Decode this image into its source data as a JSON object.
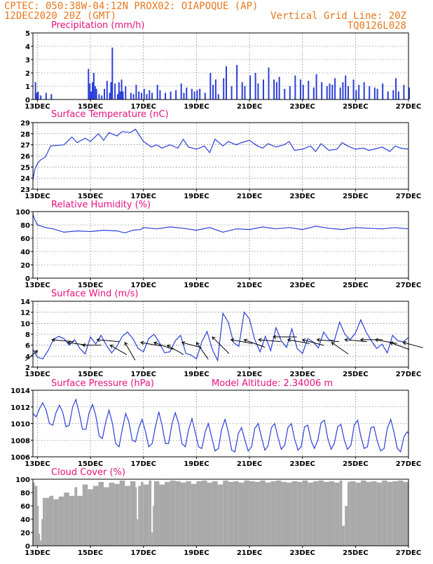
{
  "header": {
    "line1_left": "CPTEC:   050:38W-04:12N   PROX02: OIAPOQUE (AP)",
    "line2_left": "12DEC2020 20Z (GMT)",
    "line2_right": "Vertical Grid Line: 20Z",
    "line3_right": "TQ0126L028"
  },
  "colors": {
    "header": "#e8771e",
    "title": "#e8117f",
    "series": "#2a3fd8",
    "cloud": "#a9a9a9",
    "arrow": "#000000"
  },
  "chart_data": [
    {
      "id": "precip",
      "type": "bar",
      "title": "Precipitation (mm/h)",
      "xticks": [
        "13DEC",
        "15DEC",
        "17DEC",
        "19DEC",
        "21DEC",
        "23DEC",
        "25DEC",
        "27DEC"
      ],
      "xlim_days": [
        12.83,
        27.0
      ],
      "ylim": [
        0,
        5
      ],
      "yticks": [
        0,
        1,
        2,
        3,
        4,
        5
      ],
      "grid": true,
      "color": "#2a3fd8",
      "x_days": [
        12.9,
        12.95,
        13.0,
        13.1,
        13.3,
        13.5,
        14.9,
        14.95,
        15.0,
        15.05,
        15.1,
        15.15,
        15.2,
        15.3,
        15.4,
        15.5,
        15.6,
        15.7,
        15.75,
        15.8,
        15.9,
        16.0,
        16.05,
        16.1,
        16.15,
        16.2,
        16.3,
        16.5,
        16.6,
        16.7,
        16.8,
        16.9,
        17.0,
        17.1,
        17.2,
        17.3,
        17.5,
        17.6,
        17.8,
        18.0,
        18.2,
        18.4,
        18.5,
        18.6,
        18.8,
        18.9,
        19.0,
        19.1,
        19.3,
        19.5,
        19.6,
        19.7,
        19.8,
        20.0,
        20.1,
        20.3,
        20.5,
        20.7,
        20.8,
        21.0,
        21.2,
        21.3,
        21.5,
        21.7,
        21.9,
        22.0,
        22.1,
        22.3,
        22.5,
        22.7,
        22.9,
        23.0,
        23.2,
        23.4,
        23.5,
        23.7,
        23.9,
        24.0,
        24.1,
        24.2,
        24.4,
        24.5,
        24.6,
        24.7,
        24.9,
        25.0,
        25.1,
        25.3,
        25.5,
        25.7,
        25.8,
        26.0,
        26.2,
        26.4,
        26.5,
        26.6,
        26.8,
        27.0
      ],
      "values": [
        1.3,
        0.5,
        0.6,
        0.3,
        0.5,
        0.4,
        2.3,
        1.2,
        0.6,
        1.3,
        2.0,
        1.0,
        0.8,
        0.4,
        0.3,
        0.8,
        1.4,
        0.5,
        1.3,
        3.9,
        1.2,
        0.4,
        1.3,
        0.6,
        1.5,
        0.6,
        1.0,
        0.5,
        0.4,
        1.1,
        0.6,
        0.5,
        0.8,
        0.4,
        0.7,
        0.5,
        1.1,
        0.7,
        0.5,
        0.6,
        0.7,
        1.2,
        0.5,
        0.9,
        0.8,
        0.6,
        0.7,
        0.8,
        0.5,
        2.0,
        1.1,
        1.5,
        0.4,
        1.6,
        2.5,
        1.0,
        2.6,
        1.3,
        1.0,
        1.8,
        2.0,
        1.2,
        1.5,
        2.4,
        1.5,
        1.3,
        1.7,
        0.8,
        1.0,
        1.8,
        1.5,
        1.1,
        1.4,
        0.9,
        1.9,
        1.3,
        1.0,
        1.2,
        1.1,
        1.6,
        0.9,
        1.3,
        1.8,
        1.0,
        1.5,
        0.7,
        1.1,
        1.3,
        1.0,
        0.9,
        0.8,
        1.2,
        0.6,
        0.7,
        1.6,
        0.6,
        1.1,
        0.9
      ]
    },
    {
      "id": "temp",
      "type": "line",
      "title": "Surface Temperature (nC)",
      "xticks": [
        "13DEC",
        "15DEC",
        "17DEC",
        "19DEC",
        "21DEC",
        "23DEC",
        "25DEC",
        "27DEC"
      ],
      "xlim_days": [
        12.83,
        27.0
      ],
      "ylim": [
        23,
        29
      ],
      "yticks": [
        23,
        24,
        25,
        26,
        27,
        28,
        29
      ],
      "grid": true,
      "color": "#2a3fd8",
      "x_days": [
        12.83,
        12.9,
        13.0,
        13.1,
        13.3,
        13.5,
        14.0,
        14.3,
        14.5,
        14.8,
        15.0,
        15.3,
        15.5,
        15.7,
        16.0,
        16.2,
        16.5,
        16.7,
        17.0,
        17.3,
        17.5,
        17.7,
        18.0,
        18.3,
        18.5,
        18.7,
        19.0,
        19.3,
        19.5,
        19.7,
        20.0,
        20.2,
        20.5,
        20.7,
        21.0,
        21.3,
        21.5,
        21.7,
        22.0,
        22.3,
        22.5,
        22.7,
        23.0,
        23.3,
        23.5,
        23.7,
        24.0,
        24.3,
        24.5,
        24.7,
        25.0,
        25.3,
        25.5,
        25.7,
        26.0,
        26.3,
        26.5,
        26.7,
        27.0
      ],
      "values": [
        23.8,
        24.8,
        25.3,
        25.6,
        25.9,
        26.9,
        27.0,
        27.7,
        27.2,
        27.6,
        27.3,
        28.0,
        27.4,
        28.1,
        27.8,
        28.2,
        28.1,
        28.4,
        27.3,
        26.8,
        27.0,
        26.7,
        27.0,
        26.7,
        27.5,
        26.8,
        26.6,
        26.9,
        26.3,
        27.5,
        26.9,
        27.3,
        27.0,
        27.2,
        27.4,
        26.9,
        26.7,
        27.1,
        26.8,
        27.0,
        27.3,
        26.5,
        26.6,
        26.9,
        26.4,
        27.1,
        26.5,
        26.6,
        27.2,
        26.9,
        26.6,
        26.7,
        26.5,
        26.6,
        26.8,
        26.4,
        26.9,
        26.7,
        26.6
      ]
    },
    {
      "id": "rh",
      "type": "line",
      "title": "Relative Humidity (%)",
      "xticks": [
        "13DEC",
        "15DEC",
        "17DEC",
        "19DEC",
        "21DEC",
        "23DEC",
        "25DEC",
        "27DEC"
      ],
      "xlim_days": [
        12.83,
        27.0
      ],
      "ylim": [
        0,
        100
      ],
      "yticks": [
        0,
        20,
        40,
        60,
        80,
        100
      ],
      "grid": true,
      "color": "#2a3fd8",
      "x_days": [
        12.83,
        12.9,
        13.0,
        13.3,
        13.6,
        14.0,
        14.5,
        15.0,
        15.5,
        16.0,
        16.3,
        16.6,
        16.9,
        17.0,
        17.5,
        18.0,
        18.5,
        19.0,
        19.5,
        20.0,
        20.5,
        21.0,
        21.5,
        22.0,
        22.5,
        23.0,
        23.5,
        24.0,
        24.5,
        25.0,
        25.5,
        26.0,
        26.5,
        27.0
      ],
      "values": [
        96,
        88,
        80,
        76,
        74,
        69,
        71,
        70,
        72,
        71,
        68,
        72,
        73,
        76,
        74,
        77,
        75,
        72,
        76,
        69,
        74,
        73,
        77,
        74,
        76,
        73,
        78,
        75,
        73,
        76,
        75,
        74,
        76,
        74
      ]
    },
    {
      "id": "wind",
      "type": "line",
      "title": "Surface Wind (m/s)",
      "xticks": [
        "13DEC",
        "15DEC",
        "17DEC",
        "19DEC",
        "21DEC",
        "23DEC",
        "25DEC",
        "27DEC"
      ],
      "xlim_days": [
        12.83,
        27.0
      ],
      "ylim": [
        2,
        14
      ],
      "yticks": [
        2,
        4,
        6,
        8,
        10,
        12,
        14
      ],
      "grid": true,
      "color": "#2a3fd8",
      "x_days": [
        12.83,
        13.0,
        13.2,
        13.4,
        13.6,
        13.8,
        14.0,
        14.2,
        14.4,
        14.6,
        14.8,
        15.0,
        15.2,
        15.4,
        15.6,
        15.8,
        16.0,
        16.2,
        16.4,
        16.6,
        16.8,
        17.0,
        17.2,
        17.4,
        17.6,
        17.8,
        18.0,
        18.2,
        18.4,
        18.6,
        18.8,
        19.0,
        19.2,
        19.4,
        19.6,
        19.8,
        20.0,
        20.2,
        20.4,
        20.6,
        20.8,
        21.0,
        21.2,
        21.4,
        21.6,
        21.8,
        22.0,
        22.2,
        22.4,
        22.6,
        22.8,
        23.0,
        23.2,
        23.4,
        23.6,
        23.8,
        24.0,
        24.2,
        24.4,
        24.6,
        24.8,
        25.0,
        25.2,
        25.4,
        25.6,
        25.8,
        26.0,
        26.2,
        26.4,
        26.6,
        26.8,
        27.0
      ],
      "values": [
        5.2,
        3.8,
        3.5,
        5.0,
        7.0,
        7.6,
        7.2,
        6.0,
        7.0,
        5.4,
        4.4,
        7.5,
        6.2,
        7.8,
        6.0,
        4.6,
        5.8,
        7.6,
        8.4,
        7.2,
        5.4,
        4.8,
        7.2,
        8.0,
        6.5,
        4.6,
        4.8,
        6.8,
        7.8,
        4.5,
        4.2,
        3.5,
        6.6,
        8.5,
        5.2,
        3.2,
        11.8,
        10.2,
        6.5,
        5.8,
        12.0,
        10.8,
        7.0,
        4.8,
        7.6,
        5.0,
        9.2,
        6.8,
        5.6,
        9.0,
        5.4,
        4.5,
        7.2,
        6.6,
        5.5,
        8.4,
        7.0,
        6.8,
        10.2,
        8.0,
        7.0,
        8.2,
        10.6,
        8.4,
        6.8,
        5.4,
        6.2,
        4.6,
        7.8,
        6.8,
        6.6,
        7.4
      ],
      "wind_arrows": [
        {
          "x_day": 13.0,
          "speed": 5.0,
          "dir_deg": 140
        },
        {
          "x_day": 13.55,
          "speed": 7.0,
          "dir_deg": 5
        },
        {
          "x_day": 14.15,
          "speed": 6.5,
          "dir_deg": 8
        },
        {
          "x_day": 14.7,
          "speed": 6.0,
          "dir_deg": 0
        },
        {
          "x_day": 15.25,
          "speed": 7.0,
          "dir_deg": 5
        },
        {
          "x_day": 15.75,
          "speed": 6.0,
          "dir_deg": 30
        },
        {
          "x_day": 16.3,
          "speed": 6.5,
          "dir_deg": 60
        },
        {
          "x_day": 16.9,
          "speed": 6.5,
          "dir_deg": 10
        },
        {
          "x_day": 17.4,
          "speed": 6.5,
          "dir_deg": 20
        },
        {
          "x_day": 17.9,
          "speed": 6.0,
          "dir_deg": 30
        },
        {
          "x_day": 18.45,
          "speed": 6.5,
          "dir_deg": 15
        },
        {
          "x_day": 19.0,
          "speed": 6.5,
          "dir_deg": 55
        },
        {
          "x_day": 19.6,
          "speed": 7.5,
          "dir_deg": 45
        },
        {
          "x_day": 20.3,
          "speed": 7.0,
          "dir_deg": 10
        },
        {
          "x_day": 20.8,
          "speed": 7.0,
          "dir_deg": 20
        },
        {
          "x_day": 21.35,
          "speed": 7.0,
          "dir_deg": 5
        },
        {
          "x_day": 21.9,
          "speed": 7.5,
          "dir_deg": 0
        },
        {
          "x_day": 22.45,
          "speed": 7.0,
          "dir_deg": 10
        },
        {
          "x_day": 23.0,
          "speed": 7.0,
          "dir_deg": 15
        },
        {
          "x_day": 23.55,
          "speed": 7.0,
          "dir_deg": 5
        },
        {
          "x_day": 24.1,
          "speed": 6.5,
          "dir_deg": 35
        },
        {
          "x_day": 24.6,
          "speed": 7.0,
          "dir_deg": 5
        },
        {
          "x_day": 25.2,
          "speed": 7.0,
          "dir_deg": 0
        },
        {
          "x_day": 25.75,
          "speed": 7.0,
          "dir_deg": 10
        },
        {
          "x_day": 26.3,
          "speed": 6.5,
          "dir_deg": 20
        },
        {
          "x_day": 26.8,
          "speed": 6.5,
          "dir_deg": 15
        }
      ]
    },
    {
      "id": "pressure",
      "type": "line",
      "title": "Surface Pressure (hPa)",
      "annotation": "Model Altitude: 2.34006 m",
      "xticks": [
        "13DEC",
        "15DEC",
        "17DEC",
        "19DEC",
        "21DEC",
        "23DEC",
        "25DEC",
        "27DEC"
      ],
      "xlim_days": [
        12.83,
        27.0
      ],
      "ylim": [
        1006,
        1014
      ],
      "yticks": [
        1006,
        1008,
        1010,
        1012,
        1014
      ],
      "grid": true,
      "color": "#2a3fd8",
      "x_days": [
        12.83,
        12.95,
        13.08,
        13.2,
        13.33,
        13.45,
        13.58,
        13.7,
        13.83,
        13.95,
        14.08,
        14.2,
        14.33,
        14.45,
        14.58,
        14.7,
        14.83,
        14.95,
        15.08,
        15.2,
        15.33,
        15.45,
        15.58,
        15.7,
        15.83,
        15.95,
        16.08,
        16.2,
        16.33,
        16.45,
        16.58,
        16.7,
        16.83,
        16.95,
        17.08,
        17.2,
        17.33,
        17.45,
        17.58,
        17.7,
        17.83,
        17.95,
        18.08,
        18.2,
        18.33,
        18.45,
        18.58,
        18.7,
        18.83,
        18.95,
        19.08,
        19.2,
        19.33,
        19.45,
        19.58,
        19.7,
        19.83,
        19.95,
        20.08,
        20.2,
        20.33,
        20.45,
        20.58,
        20.7,
        20.83,
        20.95,
        21.08,
        21.2,
        21.33,
        21.45,
        21.58,
        21.7,
        21.83,
        21.95,
        22.08,
        22.2,
        22.33,
        22.45,
        22.58,
        22.7,
        22.83,
        22.95,
        23.08,
        23.2,
        23.33,
        23.45,
        23.58,
        23.7,
        23.83,
        23.95,
        24.08,
        24.2,
        24.33,
        24.45,
        24.58,
        24.7,
        24.83,
        24.95,
        25.08,
        25.2,
        25.33,
        25.45,
        25.58,
        25.7,
        25.83,
        25.95,
        26.08,
        26.2,
        26.33,
        26.45,
        26.58,
        26.7,
        26.83,
        26.95,
        27.0
      ],
      "values": [
        1011.2,
        1010.8,
        1011.8,
        1012.5,
        1011.6,
        1010.0,
        1009.8,
        1011.3,
        1012.2,
        1011.4,
        1009.6,
        1009.8,
        1012.0,
        1012.9,
        1011.2,
        1009.3,
        1009.3,
        1011.3,
        1012.3,
        1011.0,
        1008.5,
        1008.2,
        1010.2,
        1011.6,
        1010.0,
        1007.6,
        1007.2,
        1009.3,
        1011.2,
        1010.2,
        1008.0,
        1007.8,
        1009.5,
        1010.5,
        1009.0,
        1007.2,
        1007.6,
        1009.6,
        1011.4,
        1009.8,
        1007.6,
        1007.6,
        1010.0,
        1011.3,
        1010.0,
        1007.6,
        1007.2,
        1009.2,
        1010.6,
        1009.0,
        1007.2,
        1007.0,
        1009.0,
        1010.0,
        1008.3,
        1006.7,
        1007.0,
        1009.3,
        1010.5,
        1009.0,
        1006.8,
        1006.6,
        1008.8,
        1009.5,
        1008.0,
        1006.7,
        1007.2,
        1009.4,
        1010.0,
        1008.4,
        1006.8,
        1007.3,
        1009.5,
        1010.0,
        1008.3,
        1006.9,
        1007.4,
        1009.5,
        1010.0,
        1008.2,
        1006.8,
        1007.2,
        1009.6,
        1009.8,
        1007.9,
        1007.0,
        1008.0,
        1010.1,
        1010.4,
        1008.3,
        1006.9,
        1007.6,
        1009.6,
        1009.9,
        1008.0,
        1006.9,
        1007.4,
        1009.8,
        1010.4,
        1008.5,
        1007.0,
        1007.2,
        1009.5,
        1009.6,
        1007.8,
        1006.7,
        1007.0,
        1009.4,
        1010.5,
        1009.0,
        1007.0,
        1006.6,
        1008.4,
        1009.0,
        1008.8
      ]
    },
    {
      "id": "cloud",
      "type": "bar",
      "title": "Cloud Cover (%)",
      "xticks": [
        "13DEC",
        "15DEC",
        "17DEC",
        "19DEC",
        "21DEC",
        "23DEC",
        "25DEC",
        "27DEC"
      ],
      "xlim_days": [
        12.83,
        27.0
      ],
      "ylim": [
        0,
        100
      ],
      "yticks": [
        0,
        20,
        40,
        60,
        80,
        100
      ],
      "grid": false,
      "color": "#a9a9a9",
      "x_days": [
        12.83,
        12.9,
        13.0,
        13.05,
        13.1,
        13.15,
        13.2,
        13.3,
        13.45,
        13.6,
        13.8,
        14.0,
        14.2,
        14.4,
        14.5,
        14.7,
        14.9,
        15.1,
        15.3,
        15.5,
        15.7,
        15.9,
        16.1,
        16.3,
        16.5,
        16.7,
        16.75,
        16.8,
        16.9,
        17.0,
        17.2,
        17.3,
        17.35,
        17.4,
        17.6,
        17.8,
        18.0,
        18.2,
        18.4,
        18.6,
        18.8,
        19.0,
        19.2,
        19.4,
        19.6,
        19.8,
        20.0,
        20.2,
        20.4,
        20.6,
        20.8,
        21.0,
        21.2,
        21.4,
        21.6,
        21.8,
        22.0,
        22.2,
        22.4,
        22.6,
        22.8,
        23.0,
        23.2,
        23.4,
        23.6,
        23.8,
        24.0,
        24.2,
        24.4,
        24.5,
        24.6,
        24.7,
        24.8,
        25.0,
        25.2,
        25.4,
        25.6,
        25.8,
        26.0,
        26.2,
        26.4,
        26.6,
        26.8,
        27.0
      ],
      "values": [
        95,
        90,
        60,
        18,
        8,
        40,
        72,
        72,
        75,
        70,
        74,
        80,
        75,
        88,
        75,
        92,
        85,
        90,
        96,
        88,
        95,
        93,
        98,
        90,
        97,
        88,
        40,
        90,
        96,
        92,
        98,
        20,
        60,
        97,
        92,
        96,
        98,
        97,
        95,
        97,
        93,
        97,
        98,
        95,
        97,
        92,
        98,
        96,
        97,
        95,
        98,
        97,
        96,
        98,
        95,
        97,
        98,
        96,
        95,
        97,
        96,
        98,
        95,
        97,
        98,
        96,
        97,
        95,
        98,
        30,
        60,
        96,
        97,
        95,
        98,
        96,
        97,
        95,
        98,
        96,
        97,
        98,
        96,
        97
      ]
    }
  ]
}
